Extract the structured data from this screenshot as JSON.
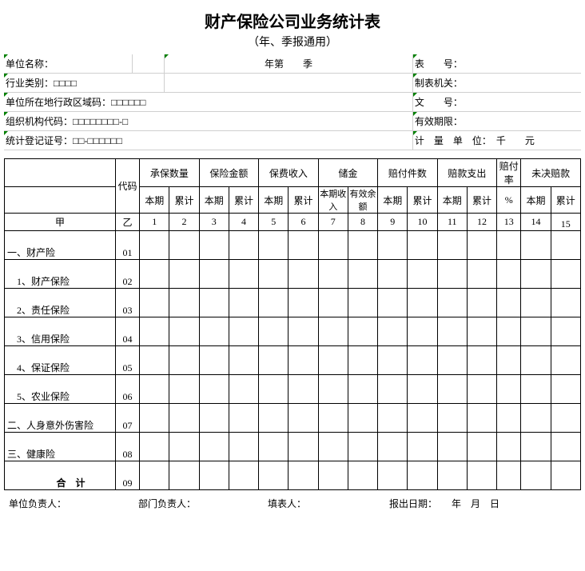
{
  "title": "财产保险公司业务统计表",
  "subtitle": "（年、季报通用）",
  "meta": {
    "unit_name_label": "单位名称：",
    "year_q_line": "年第　　季",
    "form_no_label": "表　　号：",
    "industry_label": "行业类别：□□□□",
    "make_org_label": "制表机关：",
    "region_label": "单位所在地行政区域码：□□□□□□",
    "doc_no_label": "文　　号：",
    "org_code_label": "组织机构代码：□□□□□□□□-□",
    "valid_label": "有效期限：",
    "stat_reg_label": "统计登记证号：□□-□□□□□□",
    "unit_label": "计　量　单　位：　千　　元"
  },
  "header": {
    "code": "代码",
    "g1": "承保数量",
    "g2": "保险金额",
    "g3": "保费收入",
    "g4": "储金",
    "g5": "赔付件数",
    "g6": "赔款支出",
    "g7": "赔付率",
    "g8": "未决赔款",
    "benqi": "本期",
    "leiji": "累计",
    "bqsr": "本期收入",
    "yxye": "有效余额",
    "pct": "%",
    "jia": "甲",
    "yi": "乙",
    "cols": [
      "1",
      "2",
      "3",
      "4",
      "5",
      "6",
      "7",
      "8",
      "9",
      "10",
      "11",
      "12",
      "13",
      "14",
      "15"
    ]
  },
  "rows": [
    {
      "label": "一、财产险",
      "code": "01"
    },
    {
      "label": "　1、财产保险",
      "code": "02"
    },
    {
      "label": "　2、责任保险",
      "code": "03"
    },
    {
      "label": "　3、信用保险",
      "code": "04"
    },
    {
      "label": "　4、保证保险",
      "code": "05"
    },
    {
      "label": "　5、农业保险",
      "code": "06"
    },
    {
      "label": "二、人身意外伤害险",
      "code": "07"
    },
    {
      "label": "三、健康险",
      "code": "08"
    },
    {
      "label": "　　合　计",
      "code": "09"
    }
  ],
  "footer": {
    "unit_head": "单位负责人：",
    "dept_head": "部门负责人：",
    "preparer": "填表人：",
    "report_date": "报出日期：　　年　月　日"
  }
}
